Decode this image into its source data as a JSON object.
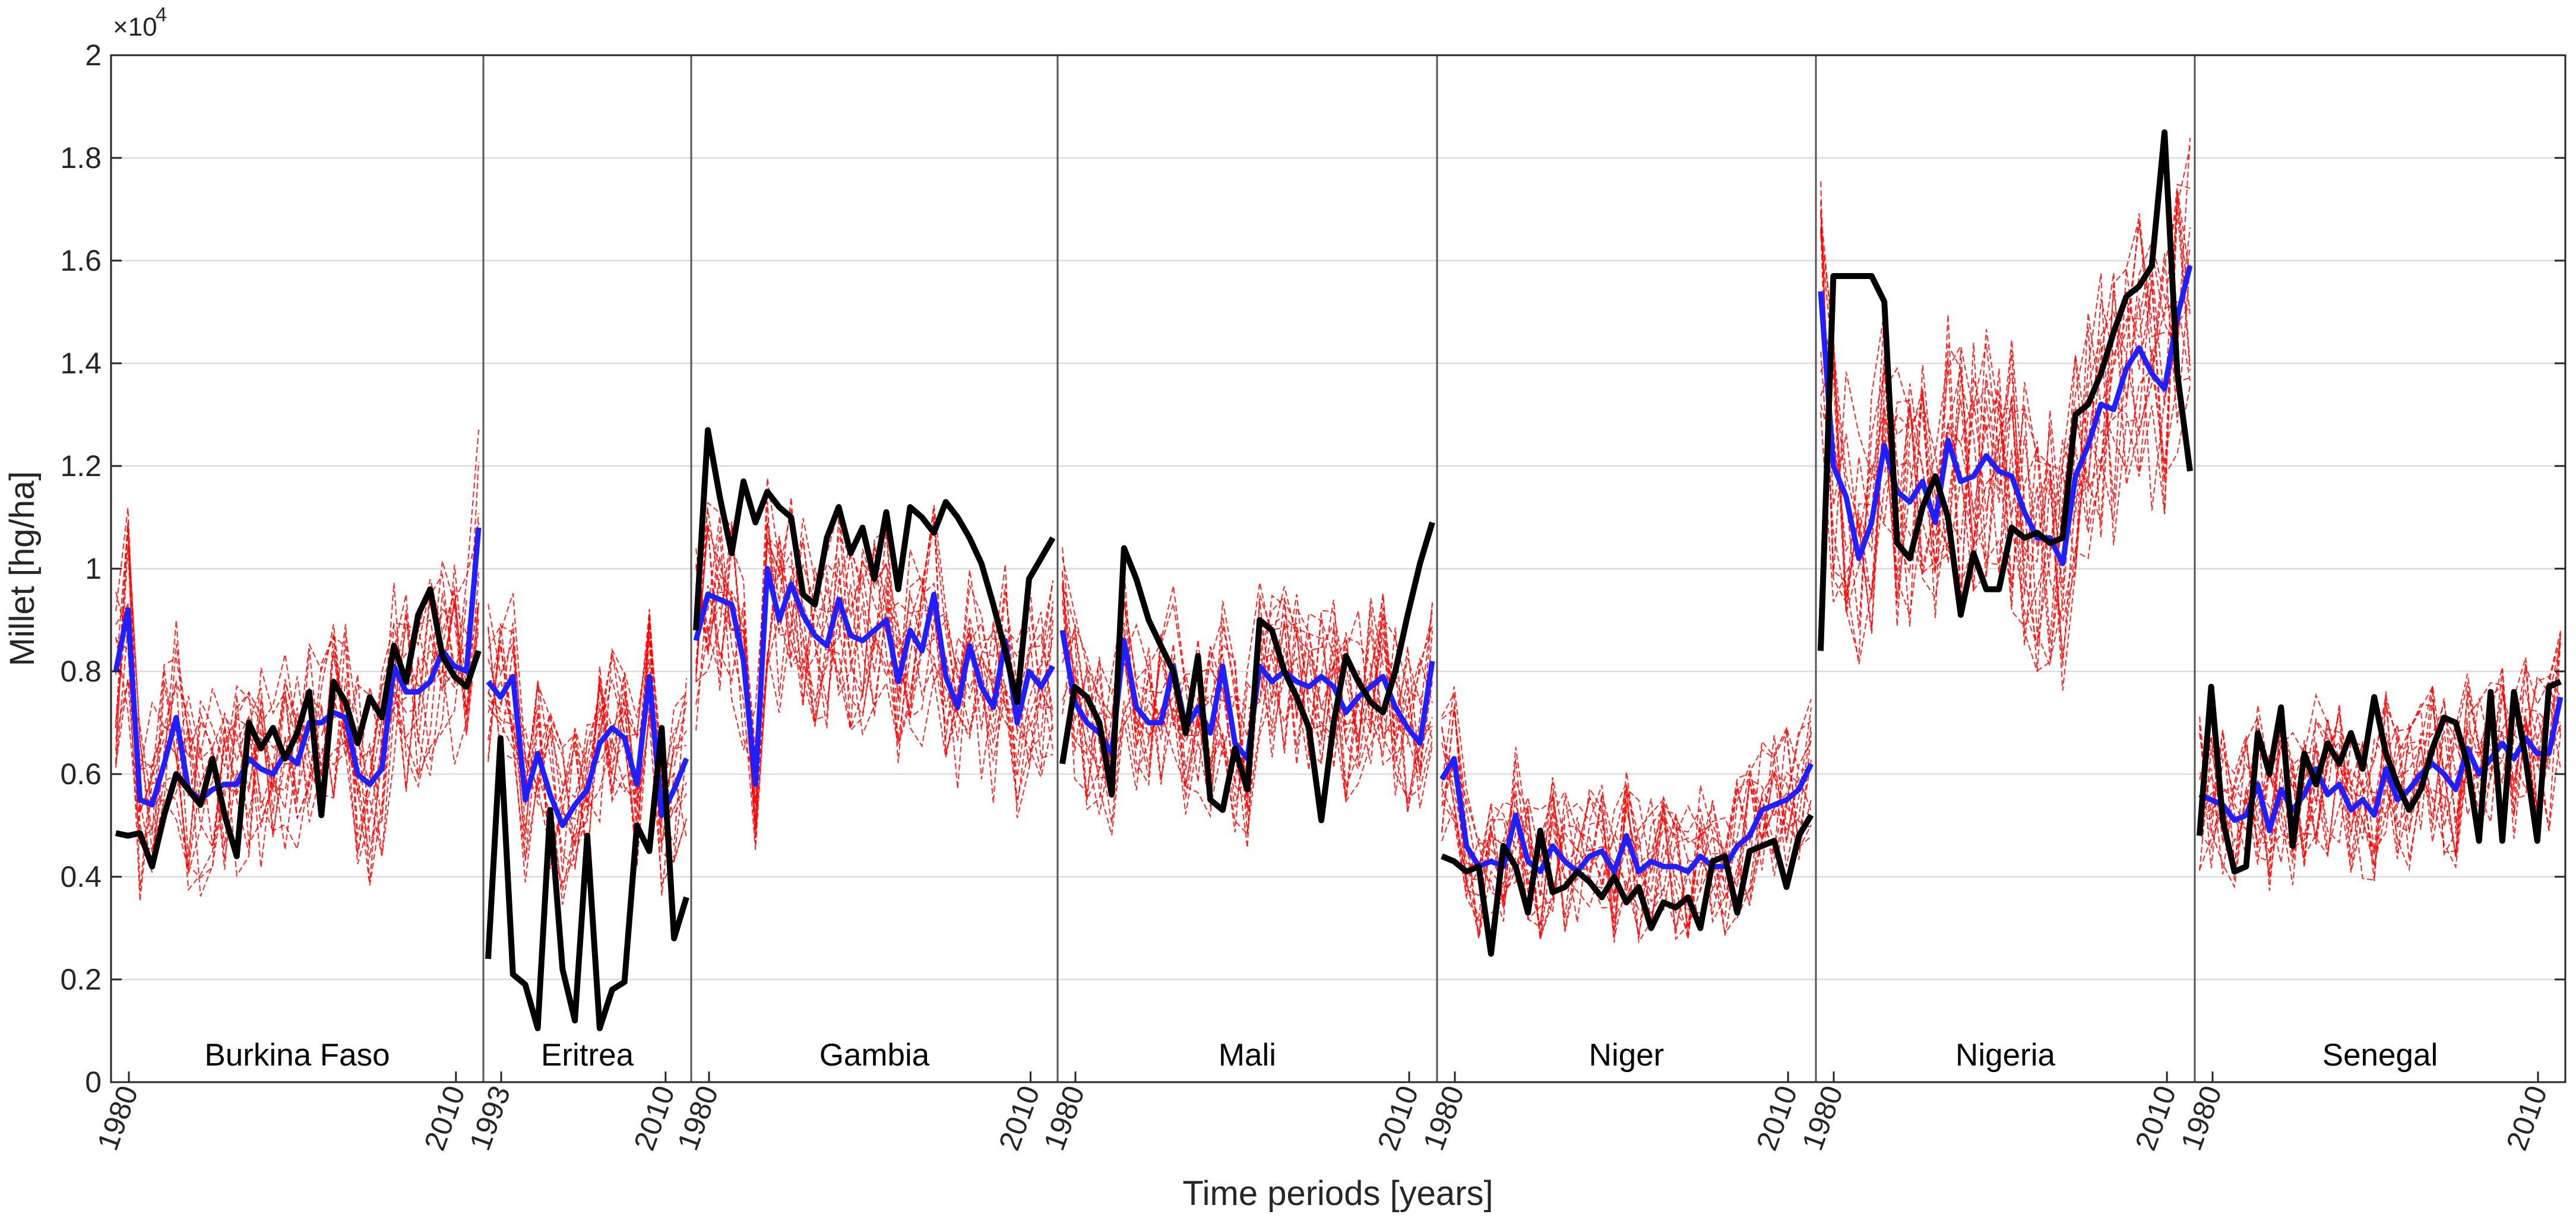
{
  "chart_data": {
    "type": "line",
    "title": "",
    "xlabel": "Time periods [years]",
    "ylabel": "Millet [hg/ha]",
    "y_multiplier_label": "×10",
    "y_multiplier_exponent": "4",
    "ylim": [
      0,
      20000
    ],
    "yticks": [
      0,
      2000,
      4000,
      6000,
      8000,
      10000,
      12000,
      14000,
      16000,
      18000,
      20000
    ],
    "ytick_labels": [
      "0",
      "0.2",
      "0.4",
      "0.6",
      "0.8",
      "1",
      "1.2",
      "1.4",
      "1.6",
      "1.8",
      "2"
    ],
    "grid": true,
    "series_styles": {
      "observed": {
        "color": "#000000",
        "description": "black thick line"
      },
      "ensemble_mean": {
        "color": "#1f1fff",
        "description": "blue thick line"
      },
      "ensemble_members": {
        "color": "#ff0000",
        "description": "red dashed thin lines"
      }
    },
    "panels": [
      {
        "name": "Burkina Faso",
        "x_start": 1980,
        "x_end": 2012,
        "x_tick_labels": [
          "1980",
          "2010"
        ],
        "observed": [
          4850,
          4800,
          4850,
          4200,
          5200,
          6000,
          5700,
          5400,
          6300,
          5200,
          4400,
          7000,
          6500,
          6900,
          6300,
          6800,
          7600,
          5200,
          7800,
          7400,
          6600,
          7500,
          7100,
          8500,
          7800,
          9100,
          9600,
          8300,
          7900,
          7700,
          8400
        ],
        "ensemble_mean": [
          8000,
          9200,
          5500,
          5400,
          6200,
          7100,
          5700,
          5500,
          5700,
          5800,
          5800,
          6300,
          6100,
          6000,
          6400,
          6200,
          7000,
          7000,
          7200,
          7100,
          6000,
          5800,
          6100,
          8100,
          7600,
          7600,
          7800,
          8400,
          8100,
          8000,
          10800
        ]
      },
      {
        "name": "Eritrea",
        "x_start": 1993,
        "x_end": 2012,
        "x_tick_labels": [
          "1993",
          "2010"
        ],
        "observed": [
          2400,
          6700,
          2100,
          1900,
          1050,
          5300,
          2200,
          1200,
          4800,
          1050,
          1800,
          1950,
          5000,
          4500,
          6900,
          2800,
          3600
        ],
        "ensemble_mean": [
          7800,
          7500,
          7900,
          5500,
          6400,
          5600,
          5000,
          5400,
          5700,
          6600,
          6900,
          6700,
          5800,
          7900,
          5200,
          5700,
          6300
        ]
      },
      {
        "name": "Gambia",
        "x_start": 1980,
        "x_end": 2012,
        "x_tick_labels": [
          "1980",
          "2010"
        ],
        "observed": [
          8800,
          12700,
          11400,
          10300,
          11700,
          10900,
          11500,
          11200,
          11000,
          9500,
          9300,
          10600,
          11200,
          10300,
          10800,
          9800,
          11100,
          9600,
          11200,
          11000,
          10700,
          11300,
          11000,
          10600,
          10100,
          9300,
          8400,
          7400,
          9800,
          10200,
          10600
        ],
        "ensemble_mean": [
          8600,
          9500,
          9400,
          9300,
          8200,
          5800,
          10000,
          9000,
          9700,
          9100,
          8700,
          8500,
          9400,
          8700,
          8600,
          8800,
          9000,
          7800,
          8800,
          8400,
          9500,
          7900,
          7300,
          8500,
          7700,
          7300,
          8600,
          7000,
          8000,
          7700,
          8100
        ]
      },
      {
        "name": "Mali",
        "x_start": 1980,
        "x_end": 2012,
        "x_tick_labels": [
          "1980",
          "2010"
        ],
        "observed": [
          6200,
          7700,
          7500,
          7000,
          5600,
          10400,
          9800,
          9000,
          8500,
          8000,
          6800,
          8300,
          5500,
          5300,
          6500,
          5700,
          9000,
          8800,
          8000,
          7500,
          6900,
          5100,
          7000,
          8300,
          7800,
          7400,
          7200,
          8000,
          9100,
          10100,
          10900
        ],
        "ensemble_mean": [
          8800,
          7400,
          7000,
          6800,
          6400,
          8600,
          7300,
          7000,
          7000,
          8100,
          6900,
          7300,
          6800,
          8100,
          6600,
          6300,
          8100,
          7800,
          8000,
          7800,
          7700,
          7900,
          7700,
          7200,
          7500,
          7700,
          7900,
          7300,
          6900,
          6600,
          8200
        ]
      },
      {
        "name": "Niger",
        "x_start": 1980,
        "x_end": 2012,
        "x_tick_labels": [
          "1980",
          "2010"
        ],
        "observed": [
          4400,
          4300,
          4100,
          4200,
          2500,
          4600,
          4200,
          3300,
          4900,
          3700,
          3800,
          4100,
          3900,
          3600,
          4000,
          3500,
          3800,
          3000,
          3500,
          3400,
          3600,
          3000,
          4300,
          4400,
          3300,
          4500,
          4600,
          4700,
          3800,
          4800,
          5200
        ],
        "ensemble_mean": [
          5900,
          6300,
          4600,
          4200,
          4300,
          4200,
          5200,
          4300,
          4100,
          4600,
          4300,
          4100,
          4400,
          4500,
          4100,
          4800,
          4100,
          4300,
          4200,
          4200,
          4100,
          4400,
          4200,
          4200,
          4600,
          4800,
          5300,
          5400,
          5500,
          5700,
          6200
        ]
      },
      {
        "name": "Nigeria",
        "x_start": 1980,
        "x_end": 2012,
        "x_tick_labels": [
          "1980",
          "2010"
        ],
        "observed": [
          8400,
          15700,
          15700,
          15700,
          15700,
          15200,
          10500,
          10200,
          11200,
          11800,
          11000,
          9100,
          10300,
          9600,
          9600,
          10800,
          10600,
          10700,
          10500,
          10600,
          13000,
          13200,
          13800,
          14600,
          15300,
          15500,
          15900,
          18500,
          13800,
          11900
        ],
        "ensemble_mean": [
          15400,
          12000,
          11400,
          10200,
          10900,
          12400,
          11500,
          11300,
          11700,
          10900,
          12500,
          11700,
          11800,
          12200,
          11900,
          11800,
          11100,
          10600,
          10600,
          10100,
          11800,
          12400,
          13200,
          13100,
          13900,
          14300,
          13800,
          13500,
          14900,
          15900
        ]
      },
      {
        "name": "Senegal",
        "x_start": 1980,
        "x_end": 2012,
        "x_tick_labels": [
          "1980",
          "2010"
        ],
        "observed": [
          4800,
          7700,
          5100,
          4100,
          4200,
          6800,
          6000,
          7300,
          4600,
          6400,
          5800,
          6600,
          6200,
          6800,
          6100,
          7500,
          6400,
          5800,
          5300,
          5700,
          6500,
          7100,
          7000,
          6200,
          4700,
          7600,
          4700,
          7600,
          6300,
          4700,
          7700,
          7800
        ],
        "ensemble_mean": [
          5600,
          5500,
          5400,
          5100,
          5200,
          5800,
          4900,
          5700,
          5300,
          5600,
          6100,
          5600,
          5800,
          5300,
          5500,
          5200,
          6100,
          5500,
          5700,
          6000,
          6200,
          6000,
          5700,
          6500,
          6000,
          6300,
          6600,
          6300,
          6700,
          6400,
          6400,
          7500
        ]
      }
    ]
  }
}
